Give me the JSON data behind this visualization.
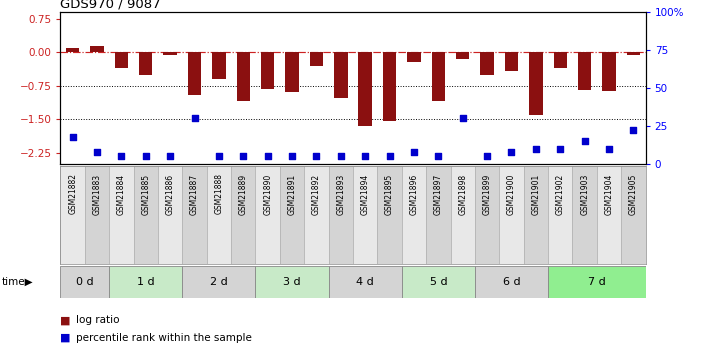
{
  "title": "GDS970 / 9087",
  "samples": [
    "GSM21882",
    "GSM21883",
    "GSM21884",
    "GSM21885",
    "GSM21886",
    "GSM21887",
    "GSM21888",
    "GSM21889",
    "GSM21890",
    "GSM21891",
    "GSM21892",
    "GSM21893",
    "GSM21894",
    "GSM21895",
    "GSM21896",
    "GSM21897",
    "GSM21898",
    "GSM21899",
    "GSM21900",
    "GSM21901",
    "GSM21902",
    "GSM21903",
    "GSM21904",
    "GSM21905"
  ],
  "log_ratio": [
    0.1,
    0.15,
    -0.35,
    -0.52,
    -0.06,
    -0.95,
    -0.6,
    -1.1,
    -0.82,
    -0.9,
    -0.3,
    -1.02,
    -1.65,
    -1.55,
    -0.22,
    -1.1,
    -0.15,
    -0.52,
    -0.42,
    -1.4,
    -0.36,
    -0.85,
    -0.87,
    -0.06
  ],
  "percentile": [
    18,
    8,
    5,
    5,
    5,
    30,
    5,
    5,
    5,
    5,
    5,
    5,
    5,
    5,
    8,
    5,
    30,
    5,
    8,
    10,
    10,
    15,
    10,
    22
  ],
  "time_groups": [
    {
      "label": "0 d",
      "start": 0,
      "end": 2,
      "color": "#d4d4d4"
    },
    {
      "label": "1 d",
      "start": 2,
      "end": 5,
      "color": "#c8eac8"
    },
    {
      "label": "2 d",
      "start": 5,
      "end": 8,
      "color": "#d4d4d4"
    },
    {
      "label": "3 d",
      "start": 8,
      "end": 11,
      "color": "#c8eac8"
    },
    {
      "label": "4 d",
      "start": 11,
      "end": 14,
      "color": "#d4d4d4"
    },
    {
      "label": "5 d",
      "start": 14,
      "end": 17,
      "color": "#c8eac8"
    },
    {
      "label": "6 d",
      "start": 17,
      "end": 20,
      "color": "#d4d4d4"
    },
    {
      "label": "7 d",
      "start": 20,
      "end": 24,
      "color": "#90ee90"
    }
  ],
  "sample_band_color": "#d4d4d4",
  "bar_color": "#8B1010",
  "dot_color": "#0000CC",
  "ylim_left": [
    -2.5,
    0.9
  ],
  "ylim_right": [
    0,
    100
  ],
  "yticks_left": [
    0.75,
    0.0,
    -0.75,
    -1.5,
    -2.25
  ],
  "yticks_right": [
    100,
    75,
    50,
    25,
    0
  ],
  "hlines_dotted": [
    -0.75,
    -1.5
  ],
  "zero_line": 0.0,
  "bar_width": 0.55,
  "n_samples": 24
}
